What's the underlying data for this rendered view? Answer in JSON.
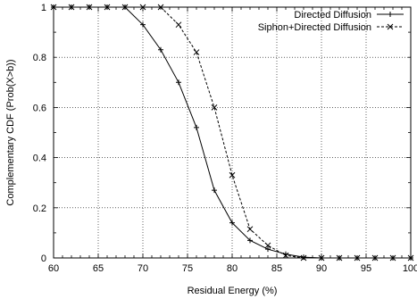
{
  "chart_data": {
    "type": "line",
    "title": "",
    "xlabel": "Residual Energy (%)",
    "ylabel": "Complementary CDF (Prob(X>b))",
    "xlim": [
      60,
      100
    ],
    "ylim": [
      0,
      1
    ],
    "x_ticks": [
      60,
      65,
      70,
      75,
      80,
      85,
      90,
      95,
      100
    ],
    "y_ticks": [
      0,
      0.2,
      0.4,
      0.6,
      0.8,
      1
    ],
    "grid": "on",
    "legend_position": "top-right",
    "series": [
      {
        "name": "Directed Diffusion",
        "line_style": "solid",
        "marker": "plus",
        "color": "#000000",
        "x": [
          60,
          62,
          64,
          66,
          68,
          70,
          72,
          74,
          76,
          78,
          80,
          82,
          84,
          86,
          88,
          90,
          92,
          94,
          96,
          98,
          100
        ],
        "y": [
          1,
          1,
          1,
          1,
          1,
          0.93,
          0.83,
          0.7,
          0.52,
          0.27,
          0.14,
          0.07,
          0.035,
          0.015,
          0.003,
          0,
          0,
          0,
          0,
          0,
          0
        ]
      },
      {
        "name": "Siphon+Directed Diffusion",
        "line_style": "dashed",
        "marker": "x",
        "color": "#000000",
        "x": [
          60,
          62,
          64,
          66,
          68,
          70,
          72,
          74,
          76,
          78,
          80,
          82,
          84,
          86,
          88,
          90,
          92,
          94,
          96,
          98,
          100
        ],
        "y": [
          1,
          1,
          1,
          1,
          1,
          1,
          1,
          0.93,
          0.82,
          0.6,
          0.33,
          0.115,
          0.05,
          0.01,
          0,
          0,
          0,
          0,
          0,
          0,
          0
        ]
      }
    ]
  }
}
